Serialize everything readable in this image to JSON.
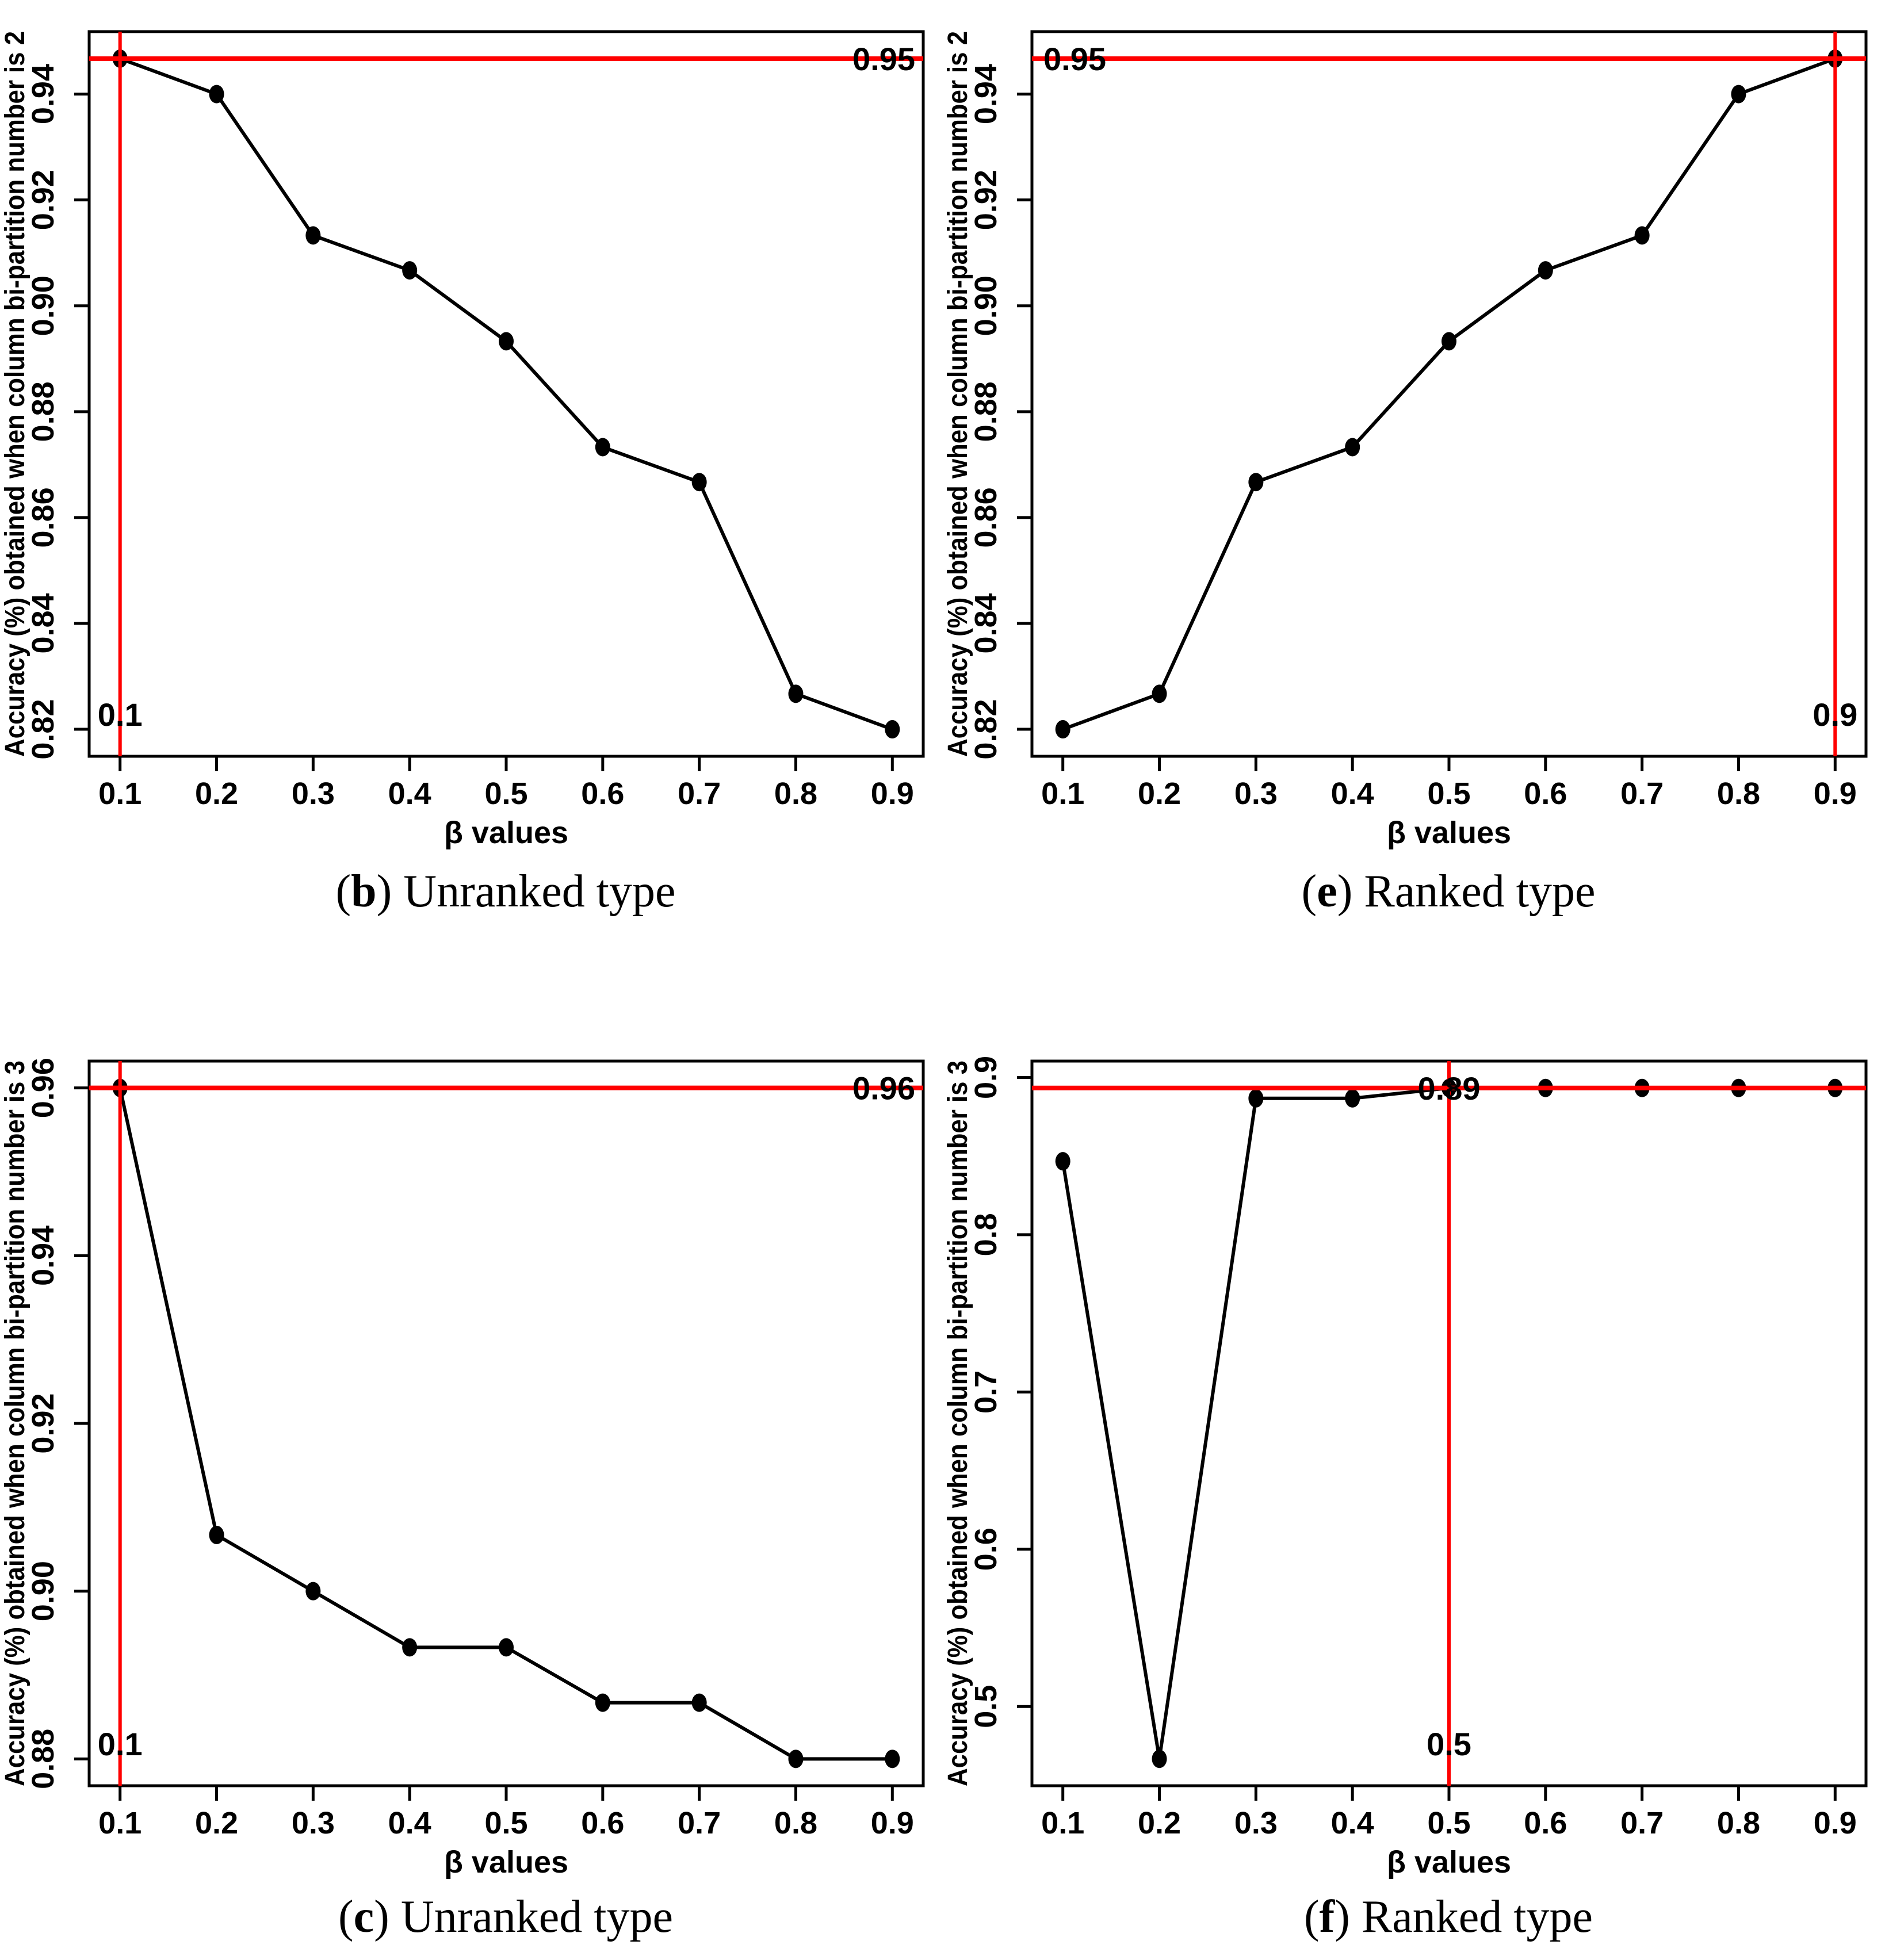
{
  "colors": {
    "axis": "#000000",
    "series": "#000000",
    "marker": "#000000",
    "guide_red": "#ff0000",
    "background": "#ffffff"
  },
  "chart_data": [
    {
      "type": "line",
      "panel": "b",
      "caption": {
        "letter": "b",
        "text": "Unranked type"
      },
      "xlabel": "β values",
      "ylabel": "Accuracy (%) obtained when column bi-partition number is 2",
      "x": [
        0.1,
        0.2,
        0.3,
        0.4,
        0.5,
        0.6,
        0.7,
        0.8,
        0.9
      ],
      "x_tick_labels": [
        "0.1",
        "0.2",
        "0.3",
        "0.4",
        "0.5",
        "0.6",
        "0.7",
        "0.8",
        "0.9"
      ],
      "y": [
        0.9467,
        0.94,
        0.9133,
        0.9067,
        0.8933,
        0.8733,
        0.8667,
        0.8267,
        0.82
      ],
      "y_ticks": [
        0.82,
        0.84,
        0.86,
        0.88,
        0.9,
        0.92,
        0.94
      ],
      "y_tick_labels": [
        "0.82",
        "0.84",
        "0.86",
        "0.88",
        "0.90",
        "0.92",
        "0.94"
      ],
      "xlim": [
        0.068,
        0.932
      ],
      "ylim": [
        0.8149,
        0.9518
      ],
      "grid": false,
      "legend": null,
      "hline": {
        "y": 0.9467,
        "label": "0.95",
        "align": "right"
      },
      "vline": {
        "x": 0.1,
        "label": "0.1"
      }
    },
    {
      "type": "line",
      "panel": "e",
      "caption": {
        "letter": "e",
        "text": "Ranked type"
      },
      "xlabel": "β values",
      "ylabel": "Accuracy (%) obtained when column bi-partition number is 2",
      "x": [
        0.1,
        0.2,
        0.3,
        0.4,
        0.5,
        0.6,
        0.7,
        0.8,
        0.9
      ],
      "x_tick_labels": [
        "0.1",
        "0.2",
        "0.3",
        "0.4",
        "0.5",
        "0.6",
        "0.7",
        "0.8",
        "0.9"
      ],
      "y": [
        0.82,
        0.8267,
        0.8667,
        0.8733,
        0.8933,
        0.9067,
        0.9133,
        0.94,
        0.9467
      ],
      "y_ticks": [
        0.82,
        0.84,
        0.86,
        0.88,
        0.9,
        0.92,
        0.94
      ],
      "y_tick_labels": [
        "0.82",
        "0.84",
        "0.86",
        "0.88",
        "0.90",
        "0.92",
        "0.94"
      ],
      "xlim": [
        0.068,
        0.932
      ],
      "ylim": [
        0.8149,
        0.9518
      ],
      "grid": false,
      "legend": null,
      "hline": {
        "y": 0.9467,
        "label": "0.95",
        "align": "left"
      },
      "vline": {
        "x": 0.9,
        "label": "0.9"
      }
    },
    {
      "type": "line",
      "panel": "c",
      "caption": {
        "letter": "c",
        "text": "Unranked type"
      },
      "xlabel": "β values",
      "ylabel": "Accuracy (%) obtained when column bi-partition number is 3",
      "x": [
        0.1,
        0.2,
        0.3,
        0.4,
        0.5,
        0.6,
        0.7,
        0.8,
        0.9
      ],
      "x_tick_labels": [
        "0.1",
        "0.2",
        "0.3",
        "0.4",
        "0.5",
        "0.6",
        "0.7",
        "0.8",
        "0.9"
      ],
      "y": [
        0.96,
        0.9067,
        0.9,
        0.8933,
        0.8933,
        0.8867,
        0.8867,
        0.88,
        0.88
      ],
      "y_ticks": [
        0.88,
        0.9,
        0.92,
        0.94,
        0.96
      ],
      "y_tick_labels": [
        "0.88",
        "0.90",
        "0.92",
        "0.94",
        "0.96"
      ],
      "xlim": [
        0.068,
        0.932
      ],
      "ylim": [
        0.8768,
        0.9632
      ],
      "grid": false,
      "legend": null,
      "hline": {
        "y": 0.96,
        "label": "0.96",
        "align": "right"
      },
      "vline": {
        "x": 0.1,
        "label": "0.1"
      }
    },
    {
      "type": "line",
      "panel": "f",
      "caption": {
        "letter": "f",
        "text": "Ranked type"
      },
      "xlabel": "β values",
      "ylabel": "Accuracy (%) obtained when column bi-partition number is 3",
      "x": [
        0.1,
        0.2,
        0.3,
        0.4,
        0.5,
        0.6,
        0.7,
        0.8,
        0.9
      ],
      "x_tick_labels": [
        "0.1",
        "0.2",
        "0.3",
        "0.4",
        "0.5",
        "0.6",
        "0.7",
        "0.8",
        "0.9"
      ],
      "y": [
        0.8467,
        0.4667,
        0.8867,
        0.8867,
        0.8933,
        0.8933,
        0.8933,
        0.8933,
        0.8933
      ],
      "y_ticks": [
        0.5,
        0.6,
        0.7,
        0.8,
        0.9
      ],
      "y_tick_labels": [
        "0.5",
        "0.6",
        "0.7",
        "0.8",
        "0.9"
      ],
      "xlim": [
        0.068,
        0.932
      ],
      "ylim": [
        0.4496,
        0.9104
      ],
      "grid": false,
      "legend": null,
      "hline": {
        "y": 0.8933,
        "label": "0.89",
        "align": "vline"
      },
      "vline": {
        "x": 0.5,
        "label": "0.5"
      }
    }
  ]
}
